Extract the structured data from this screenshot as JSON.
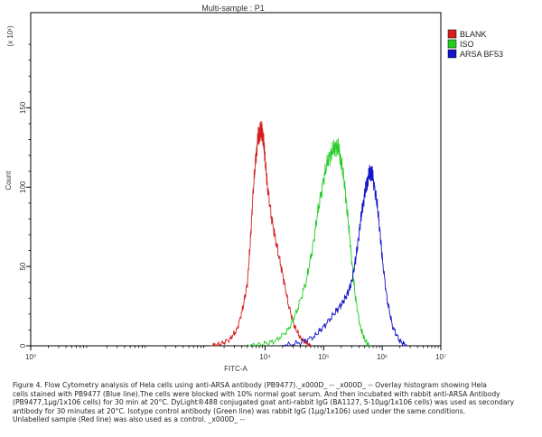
{
  "chart_data": {
    "type": "line",
    "title": "Multi-sample : P1",
    "xlabel": "FITC-A",
    "ylabel": "Count",
    "y_multiplier": "(x 10¹)",
    "x_scale": "log",
    "xlim": [
      1,
      10000000
    ],
    "ylim": [
      0,
      210
    ],
    "x_ticks": [
      {
        "value": 1,
        "label": "10⁰"
      },
      {
        "value": 10000,
        "label": "10⁴"
      },
      {
        "value": 100000,
        "label": "10⁵"
      },
      {
        "value": 1000000,
        "label": "10⁶"
      },
      {
        "value": 10000000,
        "label": "10⁷"
      }
    ],
    "y_ticks": [
      {
        "value": 0,
        "label": "0"
      },
      {
        "value": 50,
        "label": "50"
      },
      {
        "value": 100,
        "label": "100"
      },
      {
        "value": 150,
        "label": "150"
      }
    ],
    "legend_position": "top-right",
    "series": [
      {
        "name": "BLANK",
        "color": "#d42020",
        "x": [
          1200,
          1700,
          2500,
          3300,
          4200,
          5000,
          5600,
          6200,
          7000,
          7600,
          8000,
          8400,
          8700,
          9000,
          9500,
          10000,
          11000,
          13000,
          16000,
          20000,
          25000,
          32000,
          40000,
          50000,
          60000
        ],
        "y": [
          0,
          1,
          4,
          10,
          24,
          40,
          65,
          95,
          120,
          131,
          134,
          135,
          136,
          134,
          128,
          118,
          100,
          80,
          62,
          45,
          26,
          12,
          5,
          2,
          0
        ]
      },
      {
        "name": "ISO",
        "color": "#22cc22",
        "x": [
          5000,
          9000,
          15000,
          25000,
          35000,
          50000,
          65000,
          80000,
          100000,
          120000,
          140000,
          160000,
          180000,
          200000,
          230000,
          260000,
          300000,
          350000,
          420000,
          500000,
          600000
        ],
        "y": [
          0,
          1,
          3,
          10,
          22,
          40,
          62,
          85,
          105,
          118,
          122,
          126,
          124,
          116,
          100,
          80,
          55,
          30,
          12,
          4,
          0
        ]
      },
      {
        "name": "ARSA BF53",
        "color": "#1414c8",
        "x": [
          20000,
          40000,
          70000,
          100000,
          150000,
          200000,
          250000,
          300000,
          350000,
          400000,
          450000,
          500000,
          550000,
          600000,
          650000,
          700000,
          800000,
          900000,
          1000000,
          1200000,
          1500000,
          2000000,
          2600000
        ],
        "y": [
          0,
          2,
          6,
          12,
          20,
          26,
          32,
          40,
          54,
          70,
          85,
          95,
          103,
          108,
          110,
          105,
          92,
          75,
          55,
          30,
          12,
          3,
          0
        ]
      }
    ]
  },
  "caption": {
    "lines": [
      "Figure 4. Flow Cytometry analysis of Hela cells using anti-ARSA antibody (PB9477)._x000D_ -- _x000D_ -- Overlay histogram showing Hela",
      "cells stained with PB9477 (Blue line).The cells were blocked with 10% normal goat serum. And then incubated with rabbit anti-ARSA Antibody",
      "(PB9477,1μg/1x106 cells) for 30 min at 20°C. DyLight®488 conjugated goat anti-rabbit IgG (BA1127, 5-10μg/1x106 cells) was used as secondary",
      "antibody for 30 minutes at 20°C. Isotype control antibody (Green line) was rabbit IgG (1μg/1x106) used under the same conditions.",
      "Unlabelled sample (Red line) was also used as a control. _x000D_ --"
    ]
  }
}
